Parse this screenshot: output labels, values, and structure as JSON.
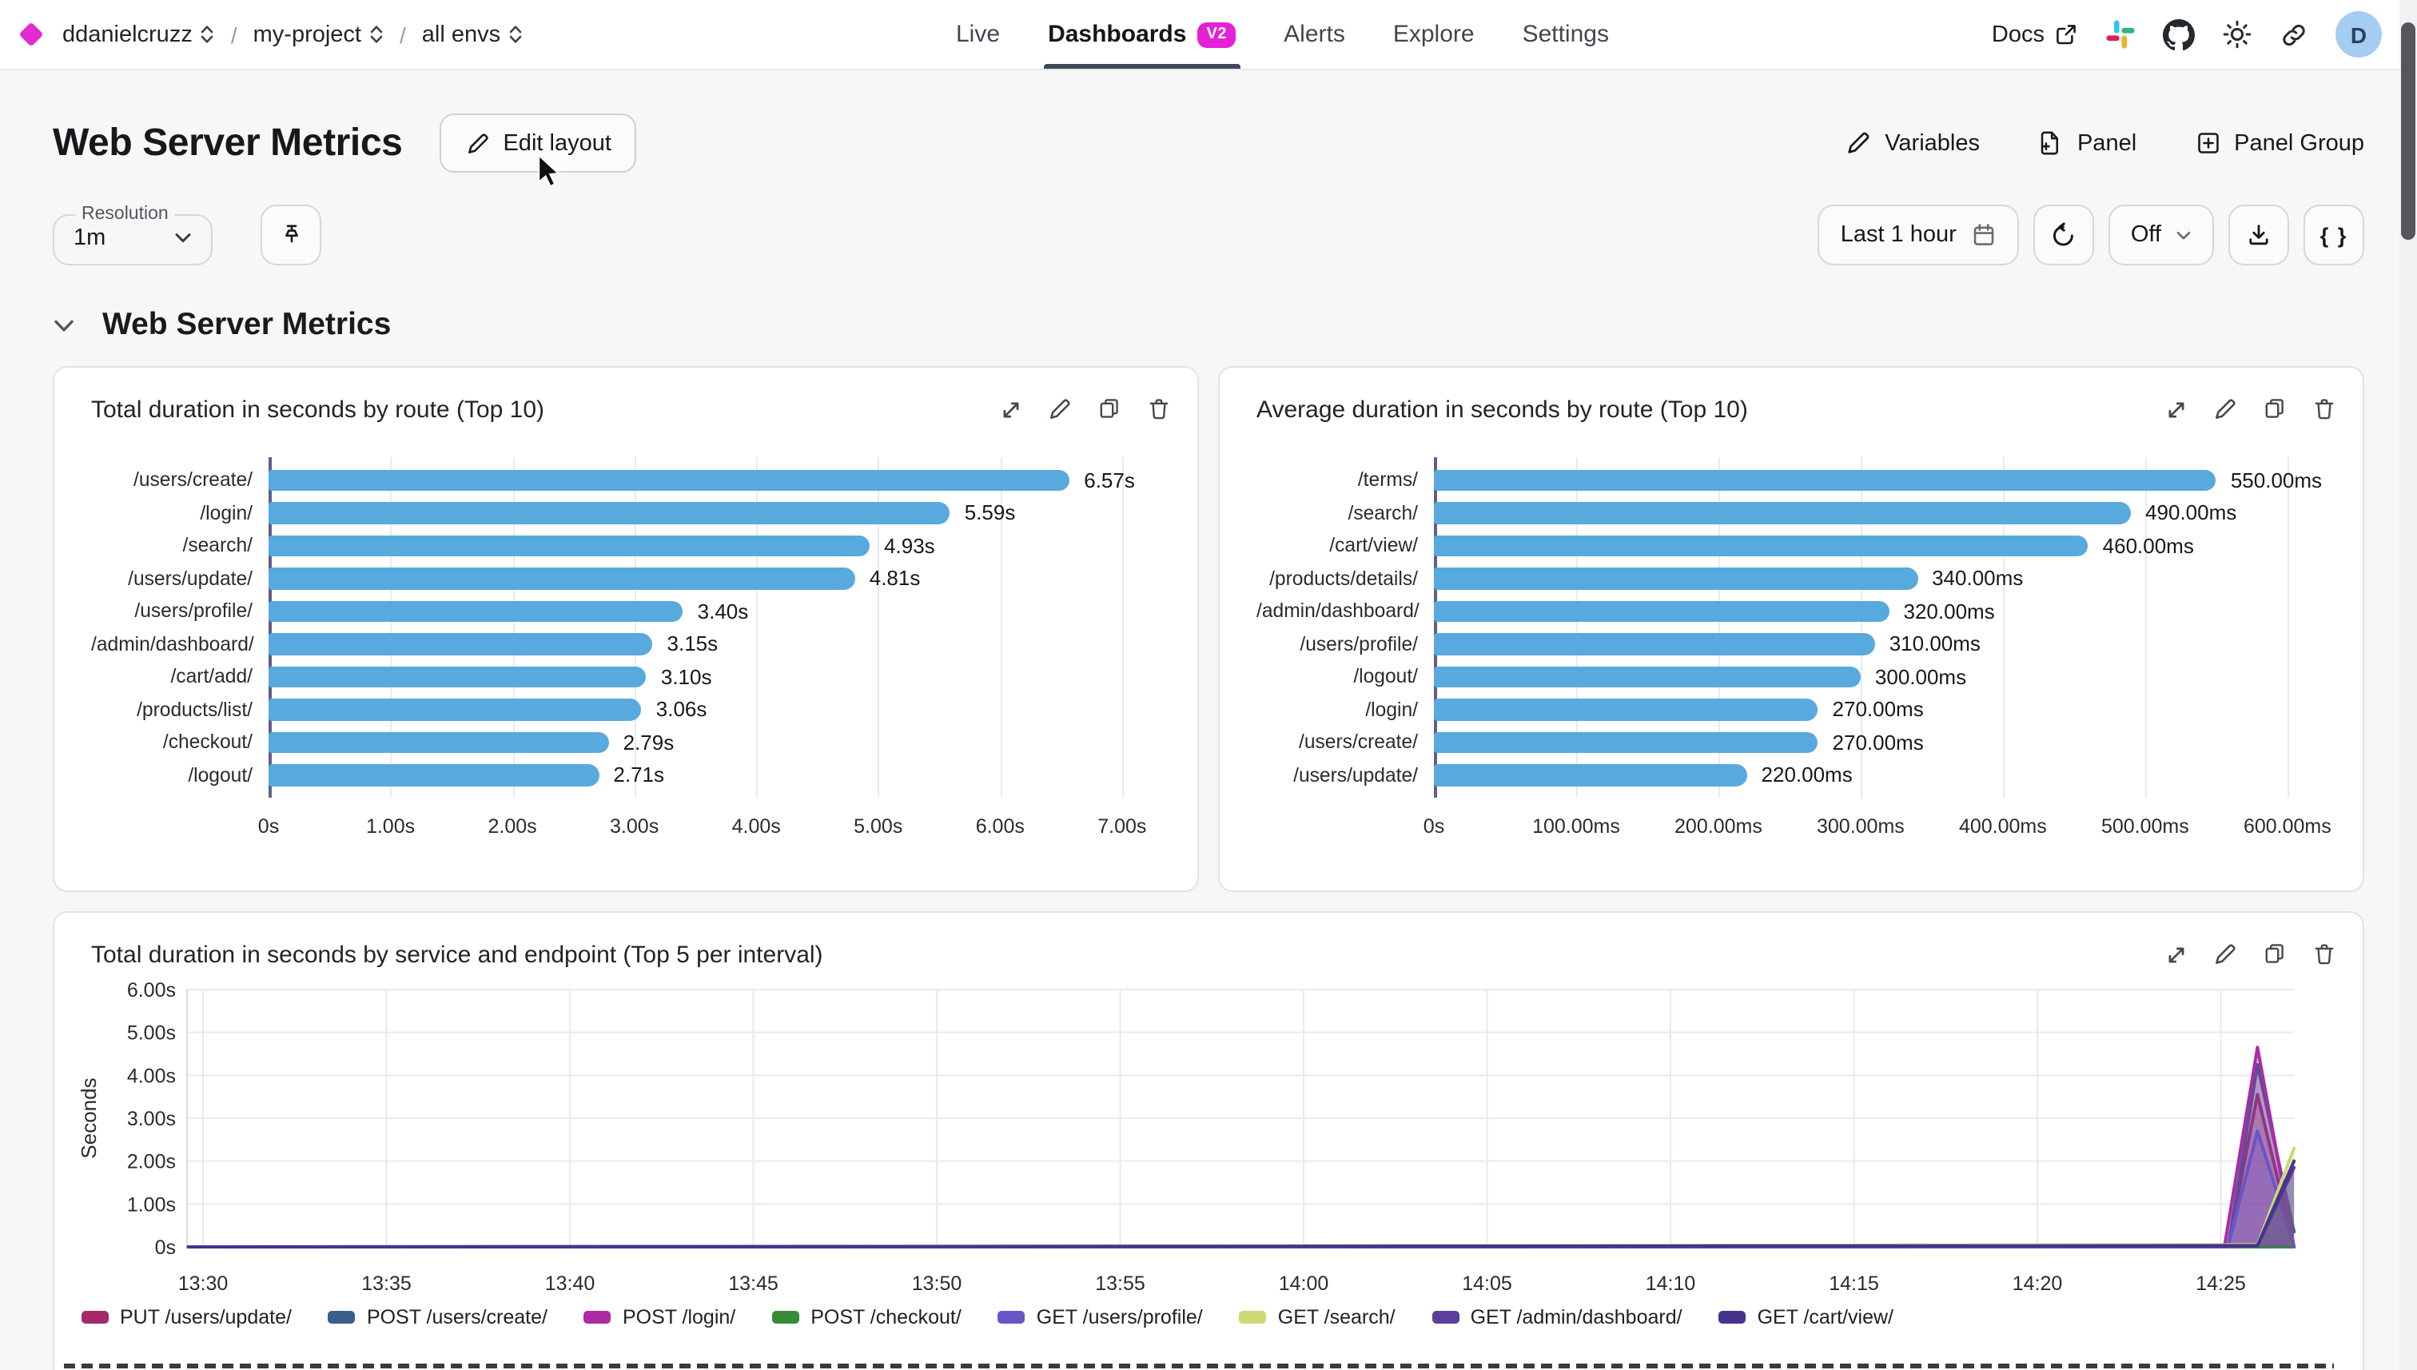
{
  "nav": {
    "org": "ddanielcruzz",
    "project": "my-project",
    "env": "all envs",
    "tabs": [
      {
        "label": "Live",
        "active": false
      },
      {
        "label": "Dashboards",
        "active": true,
        "badge": "V2"
      },
      {
        "label": "Alerts",
        "active": false
      },
      {
        "label": "Explore",
        "active": false
      },
      {
        "label": "Settings",
        "active": false
      }
    ],
    "docs_label": "Docs",
    "avatar_letter": "D"
  },
  "toolbar": {
    "title": "Web Server Metrics",
    "edit_layout": "Edit layout",
    "variables": "Variables",
    "panel": "Panel",
    "panel_group": "Panel Group"
  },
  "filters": {
    "resolution_label": "Resolution",
    "resolution_value": "1m",
    "time_range": "Last 1 hour",
    "refresh_mode": "Off",
    "code_button": "{ }"
  },
  "section": {
    "title": "Web Server Metrics"
  },
  "colors": {
    "accent": "#e32bd3",
    "bar": "#58a9dd",
    "tab_underline": "#3e4759",
    "avatar_bg": "#a5cdf2"
  },
  "chart_data": [
    {
      "type": "bar",
      "orientation": "horizontal",
      "title": "Total duration in seconds by route (Top 10)",
      "categories": [
        "/users/create/",
        "/login/",
        "/search/",
        "/users/update/",
        "/users/profile/",
        "/admin/dashboard/",
        "/cart/add/",
        "/products/list/",
        "/checkout/",
        "/logout/"
      ],
      "values": [
        6.57,
        5.59,
        4.93,
        4.81,
        3.4,
        3.15,
        3.1,
        3.06,
        2.79,
        2.71
      ],
      "value_labels": [
        "6.57s",
        "5.59s",
        "4.93s",
        "4.81s",
        "3.40s",
        "3.15s",
        "3.10s",
        "3.06s",
        "2.79s",
        "2.71s"
      ],
      "x_ticks": [
        "0s",
        "1.00s",
        "2.00s",
        "3.00s",
        "4.00s",
        "5.00s",
        "6.00s",
        "7.00s"
      ],
      "xmax": 7,
      "bar_color": "#58a9dd",
      "grid": true
    },
    {
      "type": "bar",
      "orientation": "horizontal",
      "title": "Average duration in seconds by route (Top 10)",
      "categories": [
        "/terms/",
        "/search/",
        "/cart/view/",
        "/products/details/",
        "/admin/dashboard/",
        "/users/profile/",
        "/logout/",
        "/login/",
        "/users/create/",
        "/users/update/"
      ],
      "values": [
        550,
        490,
        460,
        340,
        320,
        310,
        300,
        270,
        270,
        220
      ],
      "value_labels": [
        "550.00ms",
        "490.00ms",
        "460.00ms",
        "340.00ms",
        "320.00ms",
        "310.00ms",
        "300.00ms",
        "270.00ms",
        "270.00ms",
        "220.00ms"
      ],
      "x_ticks": [
        "0s",
        "100.00ms",
        "200.00ms",
        "300.00ms",
        "400.00ms",
        "500.00ms",
        "600.00ms"
      ],
      "xmax": 600,
      "bar_color": "#58a9dd",
      "grid": true
    },
    {
      "type": "area",
      "title": "Total duration in seconds by service and endpoint (Top 5 per interval)",
      "ylabel": "Seconds",
      "y_ticks": [
        "0s",
        "1.00s",
        "2.00s",
        "3.00s",
        "4.00s",
        "5.00s",
        "6.00s"
      ],
      "ylim": [
        0,
        6
      ],
      "x_ticks": [
        "13:30",
        "13:35",
        "13:40",
        "13:45",
        "13:50",
        "13:55",
        "14:00",
        "14:05",
        "14:10",
        "14:15",
        "14:20",
        "14:25"
      ],
      "legend_position": "bottom",
      "grid": true,
      "x_domain_minutes_after_13_30": [
        -0.4,
        57
      ],
      "series": [
        {
          "name": "PUT /users/update/",
          "color": "#a32b69",
          "points": [
            [
              -0.4,
              0
            ],
            [
              55.2,
              0
            ],
            [
              56,
              3.55
            ],
            [
              57,
              0
            ]
          ]
        },
        {
          "name": "POST /users/create/",
          "color": "#3a5e8c",
          "points": [
            [
              -0.4,
              0
            ],
            [
              55.2,
              0
            ],
            [
              56,
              4.25
            ],
            [
              57,
              0.35
            ]
          ]
        },
        {
          "name": "POST /login/",
          "color": "#ab2ba5",
          "points": [
            [
              -0.4,
              0
            ],
            [
              55.1,
              0
            ],
            [
              56,
              4.65
            ],
            [
              57,
              0
            ]
          ]
        },
        {
          "name": "POST /checkout/",
          "color": "#368c38",
          "points": [
            [
              -0.4,
              0
            ],
            [
              57,
              0
            ]
          ]
        },
        {
          "name": "GET /users/profile/",
          "color": "#6a55c8",
          "points": [
            [
              -0.4,
              0
            ],
            [
              55.2,
              0
            ],
            [
              56,
              2.7
            ],
            [
              57,
              0
            ]
          ]
        },
        {
          "name": "GET /search/",
          "color": "#ccd976",
          "points": [
            [
              -0.4,
              0
            ],
            [
              56,
              0.05
            ],
            [
              57,
              2.3
            ]
          ]
        },
        {
          "name": "GET /admin/dashboard/",
          "color": "#5b3f9e",
          "points": [
            [
              -0.4,
              0
            ],
            [
              56,
              0.02
            ],
            [
              57,
              1.85
            ]
          ]
        },
        {
          "name": "GET /cart/view/",
          "color": "#46338b",
          "points": [
            [
              -0.4,
              0
            ],
            [
              56,
              0.03
            ],
            [
              57,
              2.0
            ]
          ]
        }
      ]
    }
  ]
}
